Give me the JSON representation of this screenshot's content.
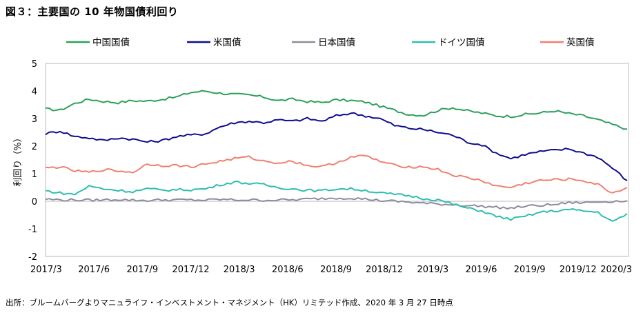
{
  "title": "図３：主要国の 10 年物国債利回り",
  "source": "出所：ブルームバーグよりマニュライフ・インベストメント・マネジメント（HK）リミテッド作成、2020 年 3 月 27 日時点",
  "chart_data": {
    "type": "line",
    "ylabel": "利回り（%）",
    "ylim": [
      -2,
      5
    ],
    "yticks": [
      5,
      4,
      3,
      2,
      1,
      0,
      -1,
      -2
    ],
    "xticks": [
      "2017/3",
      "2017/6",
      "2017/9",
      "2017/12",
      "2018/3",
      "2018/6",
      "2018/9",
      "2018/12",
      "2019/3",
      "2019/6",
      "2019/9",
      "2019/12",
      "2020/3"
    ],
    "legend_position": "top",
    "grid": false,
    "series": [
      {
        "name": "中国国債",
        "color": "#2ca05a",
        "values": [
          3.35,
          3.3,
          3.55,
          3.7,
          3.62,
          3.58,
          3.65,
          3.63,
          3.7,
          3.78,
          3.95,
          4.0,
          3.92,
          3.88,
          3.85,
          3.78,
          3.65,
          3.7,
          3.62,
          3.58,
          3.68,
          3.65,
          3.6,
          3.45,
          3.3,
          3.15,
          3.12,
          3.3,
          3.4,
          3.28,
          3.2,
          3.1,
          3.08,
          3.15,
          3.2,
          3.28,
          3.18,
          3.1,
          2.95,
          2.78,
          2.62
        ]
      },
      {
        "name": "米国債",
        "color": "#0d0d8c",
        "values": [
          2.45,
          2.55,
          2.35,
          2.3,
          2.2,
          2.3,
          2.25,
          2.15,
          2.2,
          2.35,
          2.4,
          2.45,
          2.7,
          2.85,
          2.9,
          2.85,
          2.95,
          2.9,
          3.0,
          2.9,
          3.1,
          3.2,
          3.1,
          3.0,
          2.75,
          2.65,
          2.6,
          2.5,
          2.4,
          2.15,
          2.05,
          1.75,
          1.55,
          1.7,
          1.8,
          1.85,
          1.9,
          1.75,
          1.6,
          1.2,
          0.75
        ]
      },
      {
        "name": "日本国債",
        "color": "#8c8c9e",
        "values": [
          0.08,
          0.05,
          0.05,
          0.04,
          0.05,
          0.07,
          0.04,
          0.03,
          0.05,
          0.05,
          0.05,
          0.04,
          0.07,
          0.05,
          0.05,
          0.04,
          0.05,
          0.05,
          0.08,
          0.1,
          0.12,
          0.12,
          0.08,
          0.03,
          0.0,
          -0.03,
          -0.07,
          -0.1,
          -0.12,
          -0.15,
          -0.18,
          -0.22,
          -0.25,
          -0.18,
          -0.15,
          -0.12,
          -0.05,
          -0.05,
          -0.02,
          0.0,
          0.02
        ]
      },
      {
        "name": "ドイツ国債",
        "color": "#2ebdb0",
        "values": [
          0.38,
          0.3,
          0.25,
          0.55,
          0.45,
          0.4,
          0.35,
          0.45,
          0.4,
          0.42,
          0.42,
          0.45,
          0.6,
          0.7,
          0.65,
          0.6,
          0.5,
          0.45,
          0.4,
          0.38,
          0.45,
          0.45,
          0.4,
          0.3,
          0.25,
          0.2,
          0.1,
          0.05,
          -0.1,
          -0.25,
          -0.35,
          -0.55,
          -0.65,
          -0.55,
          -0.4,
          -0.35,
          -0.3,
          -0.35,
          -0.4,
          -0.75,
          -0.45
        ]
      },
      {
        "name": "英国債",
        "color": "#f08070",
        "values": [
          1.2,
          1.25,
          1.1,
          1.05,
          1.15,
          1.1,
          1.05,
          1.35,
          1.3,
          1.3,
          1.25,
          1.35,
          1.45,
          1.55,
          1.6,
          1.45,
          1.4,
          1.45,
          1.3,
          1.25,
          1.4,
          1.6,
          1.65,
          1.45,
          1.3,
          1.25,
          1.25,
          1.15,
          0.95,
          0.85,
          0.75,
          0.55,
          0.5,
          0.65,
          0.75,
          0.78,
          0.8,
          0.75,
          0.6,
          0.3,
          0.5
        ]
      }
    ]
  }
}
